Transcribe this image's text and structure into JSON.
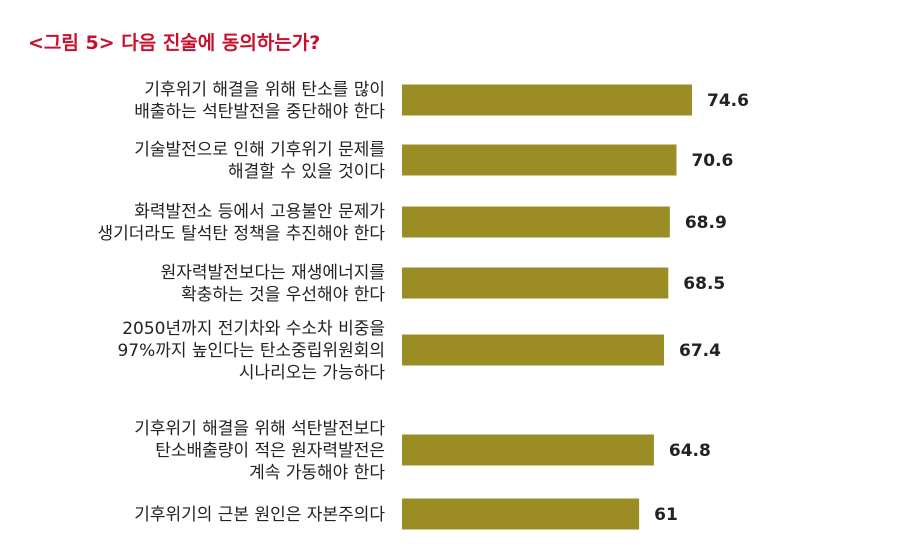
{
  "figure_title": "<그림 5> 다음 진술에 동의하는가?",
  "chart_data": {
    "type": "bar",
    "orientation": "horizontal",
    "title": "<그림 5> 다음 진술에 동의하는가?",
    "xlabel": "",
    "ylabel": "",
    "xlim": [
      0,
      100
    ],
    "bar_color": "#9b8c24",
    "title_color": "#c8102e",
    "categories": [
      [
        "기후위기 해결을 위해 탄소를 많이",
        "배출하는 석탄발전을 중단해야 한다"
      ],
      [
        "기술발전으로 인해 기후위기 문제를",
        "해결할 수 있을 것이다"
      ],
      [
        "화력발전소 등에서 고용불안 문제가",
        "생기더라도 탈석탄 정책을 추진해야 한다"
      ],
      [
        "원자력발전보다는 재생에너지를",
        "확충하는 것을 우선해야 한다"
      ],
      [
        "2050년까지 전기차와 수소차 비중을",
        "97%까지 높인다는 탄소중립위원회의",
        "시나리오는 가능하다"
      ],
      [
        "기후위기 해결을 위해 석탄발전보다",
        "탄소배출량이 적은 원자력발전은",
        "계속 가동해야 한다"
      ],
      [
        "기후위기의 근본 원인은 자본주의다"
      ]
    ],
    "values": [
      74.6,
      70.6,
      68.9,
      68.5,
      67.4,
      64.8,
      61
    ],
    "value_labels": [
      "74.6",
      "70.6",
      "68.9",
      "68.5",
      "67.4",
      "64.8",
      "61"
    ]
  }
}
